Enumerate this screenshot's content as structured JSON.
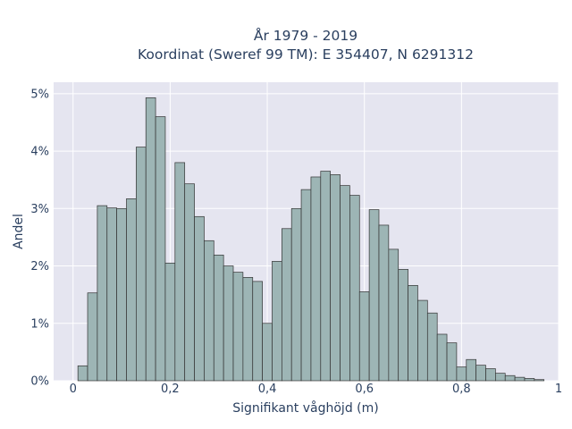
{
  "chart_data": {
    "type": "bar",
    "title_line1": "År 1979 - 2019",
    "title_line2": "Koordinat (Sweref 99 TM): E 354407, N 6291312",
    "xlabel": "Signifikant våghöjd (m)",
    "ylabel": "Andel",
    "xlim": [
      -0.04,
      1.0
    ],
    "ylim": [
      0,
      5.2
    ],
    "x_ticks": [
      0,
      0.2,
      0.4,
      0.6,
      0.8,
      1
    ],
    "x_tick_labels": [
      "0",
      "0,2",
      "0,4",
      "0,6",
      "0,8",
      "1"
    ],
    "y_ticks": [
      0,
      1,
      2,
      3,
      4,
      5
    ],
    "y_tick_labels": [
      "0%",
      "1%",
      "2%",
      "3%",
      "4%",
      "5%"
    ],
    "bin_width": 0.02,
    "bin_starts": [
      0.01,
      0.03,
      0.05,
      0.07,
      0.09,
      0.11,
      0.13,
      0.15,
      0.17,
      0.19,
      0.21,
      0.23,
      0.25,
      0.27,
      0.29,
      0.31,
      0.33,
      0.35,
      0.37,
      0.39,
      0.41,
      0.43,
      0.45,
      0.47,
      0.49,
      0.51,
      0.53,
      0.55,
      0.57,
      0.59,
      0.61,
      0.63,
      0.65,
      0.67,
      0.69,
      0.71,
      0.73,
      0.75,
      0.77,
      0.79,
      0.81,
      0.83,
      0.85,
      0.87,
      0.89,
      0.91,
      0.93,
      0.95
    ],
    "values": [
      0.26,
      1.53,
      3.05,
      3.01,
      3.0,
      3.17,
      4.07,
      4.93,
      4.6,
      2.05,
      3.8,
      3.43,
      2.86,
      2.44,
      2.19,
      2.0,
      1.89,
      1.8,
      1.73,
      1.0,
      2.08,
      2.65,
      3.0,
      3.33,
      3.55,
      3.65,
      3.59,
      3.4,
      3.23,
      1.55,
      2.98,
      2.71,
      2.29,
      1.94,
      1.66,
      1.4,
      1.18,
      0.81,
      0.66,
      0.24,
      0.37,
      0.27,
      0.21,
      0.13,
      0.09,
      0.06,
      0.04,
      0.02
    ],
    "grid": true,
    "colors": {
      "bar_fill": "#9db5b5",
      "bar_stroke": "#333333",
      "plot_bg": "#e5e5f0",
      "grid": "#ffffff"
    }
  }
}
